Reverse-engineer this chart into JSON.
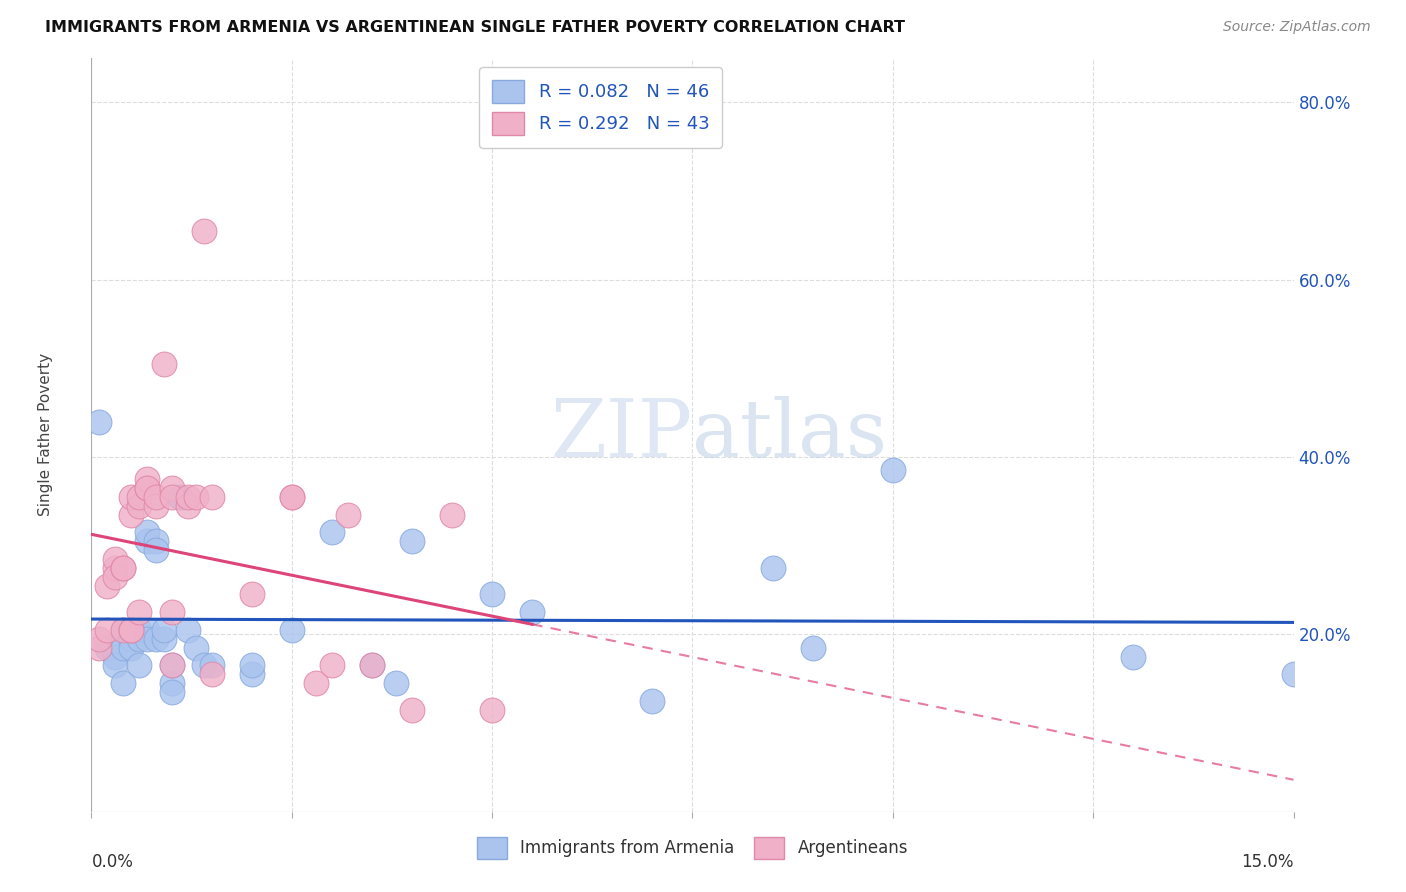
{
  "title": "IMMIGRANTS FROM ARMENIA VS ARGENTINEAN SINGLE FATHER POVERTY CORRELATION CHART",
  "source": "Source: ZipAtlas.com",
  "ylabel": "Single Father Poverty",
  "armenia_color": "#aac4ee",
  "argentina_color": "#f0b0c8",
  "armenia_line_color": "#2255bb",
  "argentina_line_color": "#dd4477",
  "background_color": "#ffffff",
  "grid_color": "#dddddd",
  "watermark_zip": "ZIP",
  "watermark_atlas": "atlas",
  "xmin": 0.0,
  "xmax": 0.15,
  "ymin": 0.0,
  "ymax": 0.85,
  "armenia_scatter": [
    [
      0.001,
      0.44
    ],
    [
      0.002,
      0.185
    ],
    [
      0.003,
      0.175
    ],
    [
      0.003,
      0.165
    ],
    [
      0.004,
      0.145
    ],
    [
      0.004,
      0.205
    ],
    [
      0.004,
      0.185
    ],
    [
      0.005,
      0.195
    ],
    [
      0.005,
      0.205
    ],
    [
      0.005,
      0.185
    ],
    [
      0.006,
      0.195
    ],
    [
      0.006,
      0.205
    ],
    [
      0.006,
      0.165
    ],
    [
      0.007,
      0.305
    ],
    [
      0.007,
      0.315
    ],
    [
      0.007,
      0.205
    ],
    [
      0.007,
      0.195
    ],
    [
      0.008,
      0.305
    ],
    [
      0.008,
      0.295
    ],
    [
      0.008,
      0.195
    ],
    [
      0.009,
      0.195
    ],
    [
      0.009,
      0.205
    ],
    [
      0.01,
      0.145
    ],
    [
      0.01,
      0.135
    ],
    [
      0.01,
      0.165
    ],
    [
      0.011,
      0.355
    ],
    [
      0.011,
      0.355
    ],
    [
      0.012,
      0.205
    ],
    [
      0.013,
      0.185
    ],
    [
      0.014,
      0.165
    ],
    [
      0.015,
      0.165
    ],
    [
      0.02,
      0.155
    ],
    [
      0.02,
      0.165
    ],
    [
      0.025,
      0.205
    ],
    [
      0.03,
      0.315
    ],
    [
      0.035,
      0.165
    ],
    [
      0.038,
      0.145
    ],
    [
      0.04,
      0.305
    ],
    [
      0.05,
      0.245
    ],
    [
      0.055,
      0.225
    ],
    [
      0.07,
      0.125
    ],
    [
      0.085,
      0.275
    ],
    [
      0.09,
      0.185
    ],
    [
      0.1,
      0.385
    ],
    [
      0.13,
      0.175
    ],
    [
      0.15,
      0.155
    ]
  ],
  "argentina_scatter": [
    [
      0.001,
      0.185
    ],
    [
      0.001,
      0.195
    ],
    [
      0.002,
      0.205
    ],
    [
      0.002,
      0.255
    ],
    [
      0.003,
      0.275
    ],
    [
      0.003,
      0.285
    ],
    [
      0.003,
      0.265
    ],
    [
      0.004,
      0.275
    ],
    [
      0.004,
      0.275
    ],
    [
      0.004,
      0.205
    ],
    [
      0.005,
      0.205
    ],
    [
      0.005,
      0.205
    ],
    [
      0.005,
      0.335
    ],
    [
      0.005,
      0.355
    ],
    [
      0.006,
      0.345
    ],
    [
      0.006,
      0.355
    ],
    [
      0.006,
      0.225
    ],
    [
      0.007,
      0.365
    ],
    [
      0.007,
      0.375
    ],
    [
      0.007,
      0.365
    ],
    [
      0.008,
      0.345
    ],
    [
      0.008,
      0.355
    ],
    [
      0.009,
      0.505
    ],
    [
      0.01,
      0.365
    ],
    [
      0.01,
      0.355
    ],
    [
      0.01,
      0.225
    ],
    [
      0.01,
      0.165
    ],
    [
      0.012,
      0.345
    ],
    [
      0.012,
      0.355
    ],
    [
      0.013,
      0.355
    ],
    [
      0.014,
      0.655
    ],
    [
      0.015,
      0.355
    ],
    [
      0.015,
      0.155
    ],
    [
      0.02,
      0.245
    ],
    [
      0.025,
      0.355
    ],
    [
      0.025,
      0.355
    ],
    [
      0.028,
      0.145
    ],
    [
      0.03,
      0.165
    ],
    [
      0.032,
      0.335
    ],
    [
      0.035,
      0.165
    ],
    [
      0.04,
      0.115
    ],
    [
      0.045,
      0.335
    ],
    [
      0.05,
      0.115
    ]
  ],
  "armenia_line": [
    0.0,
    0.15,
    0.195,
    0.215
  ],
  "argentina_line": [
    0.0,
    0.055,
    0.18,
    0.375
  ],
  "argentina_dashed": [
    0.055,
    0.15,
    0.375,
    0.48
  ]
}
